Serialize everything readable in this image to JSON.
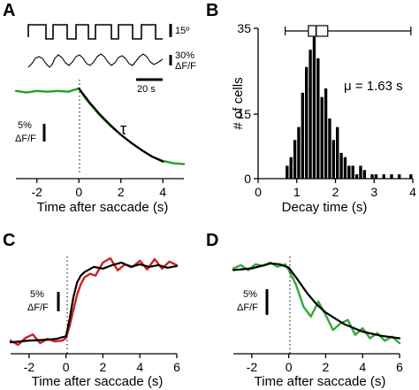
{
  "panel_labels": [
    "A",
    "B",
    "C",
    "D"
  ],
  "chart_data": [
    {
      "panel": "A",
      "type": "line",
      "xlabel": "Time after saccade (s)",
      "xticks": [
        -2,
        0,
        2,
        4
      ],
      "xlim": [
        -3,
        5
      ],
      "scalebars": {
        "eye": "15º",
        "dff_top_line1": "30%",
        "dff_top_line2": "ΔF/F",
        "time": "20 s",
        "dff_line1": "5%",
        "dff_line2": "ΔF/F"
      },
      "annotation": "τ",
      "series": [
        {
          "color": "#22a02a",
          "x": [
            -3,
            -2.5,
            -2,
            -1.5,
            -1,
            -0.5,
            0,
            0.25,
            0.5,
            1,
            1.5,
            2,
            2.5,
            3,
            3.5,
            4,
            4.5,
            5
          ],
          "values": [
            0.97,
            0.95,
            0.97,
            0.96,
            0.97,
            0.96,
            1.0,
            0.9,
            0.82,
            0.67,
            0.54,
            0.43,
            0.33,
            0.24,
            0.16,
            0.11,
            0.08,
            0.07
          ]
        },
        {
          "color": "#000000",
          "x": [
            0,
            0.5,
            1,
            1.5,
            2,
            2.5,
            3,
            3.5,
            4
          ],
          "values": [
            1.0,
            0.83,
            0.68,
            0.55,
            0.43,
            0.33,
            0.24,
            0.16,
            0.1
          ]
        }
      ]
    },
    {
      "panel": "B",
      "type": "bar",
      "xlabel": "Decay time (s)",
      "ylabel": "# of cells",
      "annotation": "μ = 1.63 s",
      "xlim": [
        0,
        4
      ],
      "ylim": [
        0,
        35
      ],
      "xticks": [
        0,
        1,
        2,
        3,
        4
      ],
      "yticks": [
        0,
        15,
        35
      ],
      "bin_width": 0.1,
      "bin_starts": [
        0.7,
        0.8,
        0.9,
        1.0,
        1.1,
        1.2,
        1.3,
        1.4,
        1.5,
        1.6,
        1.7,
        1.8,
        1.9,
        2.0,
        2.1,
        2.2,
        2.3,
        2.4,
        2.5,
        2.6,
        2.7,
        2.8,
        2.9,
        3.0,
        3.1,
        3.2,
        3.3,
        3.4,
        3.5,
        3.6,
        3.7,
        3.8,
        3.9
      ],
      "values": [
        3,
        5,
        9,
        12,
        20,
        26,
        30,
        33,
        28,
        19,
        21,
        14,
        9,
        12,
        6,
        5,
        3,
        3,
        1,
        3,
        2,
        0,
        1,
        1,
        0,
        1,
        0,
        1,
        0,
        1,
        0,
        0,
        1
      ],
      "boxplot": {
        "whisker_low": 0.7,
        "q1": 1.3,
        "median": 1.5,
        "q3": 1.8,
        "whisker_high": 3.95
      }
    },
    {
      "panel": "C",
      "type": "line",
      "xlabel": "Time after saccade (s)",
      "xticks": [
        -2,
        0,
        2,
        4,
        6
      ],
      "xlim": [
        -3,
        6
      ],
      "scalebars": {
        "dff_line1": "5%",
        "dff_line2": "ΔF/F"
      },
      "series": [
        {
          "color": "#d02020",
          "x": [
            -3,
            -2.6,
            -2.2,
            -1.8,
            -1.4,
            -1,
            -0.6,
            -0.2,
            0,
            0.2,
            0.4,
            0.6,
            0.8,
            1,
            1.3,
            1.6,
            2,
            2.4,
            2.8,
            3.2,
            3.6,
            4,
            4.4,
            4.8,
            5.2,
            5.6,
            6
          ],
          "values": [
            0.05,
            0.0,
            0.08,
            0.12,
            0.02,
            0.07,
            0.04,
            0.05,
            0.08,
            0.22,
            0.4,
            0.58,
            0.7,
            0.78,
            0.82,
            0.8,
            0.95,
            1.0,
            0.86,
            0.93,
            0.9,
            0.97,
            0.87,
            0.99,
            0.88,
            0.96,
            0.92
          ]
        },
        {
          "color": "#000000",
          "x": [
            -3,
            -2,
            -1,
            -0.5,
            0,
            0.2,
            0.4,
            0.6,
            0.8,
            1,
            1.5,
            2,
            2.5,
            3,
            3.5,
            4,
            4.5,
            5,
            5.5,
            6
          ],
          "values": [
            0.03,
            0.05,
            0.06,
            0.07,
            0.1,
            0.3,
            0.55,
            0.72,
            0.8,
            0.84,
            0.9,
            0.88,
            0.92,
            0.95,
            0.9,
            0.93,
            0.9,
            0.92,
            0.89,
            0.91
          ]
        }
      ]
    },
    {
      "panel": "D",
      "type": "line",
      "xlabel": "Time after saccade (s)",
      "xticks": [
        -2,
        0,
        2,
        4,
        6
      ],
      "xlim": [
        -3,
        6
      ],
      "scalebars": {
        "dff_line1": "5%",
        "dff_line2": "ΔF/F"
      },
      "series": [
        {
          "color": "#32a83c",
          "x": [
            -3,
            -2.6,
            -2.2,
            -1.8,
            -1.4,
            -1,
            -0.6,
            -0.2,
            0,
            0.4,
            0.8,
            1.2,
            1.6,
            2,
            2.4,
            2.8,
            3.2,
            3.6,
            4,
            4.4,
            4.8,
            5.2,
            5.6,
            6
          ],
          "values": [
            0.92,
            0.96,
            0.9,
            0.97,
            0.95,
            0.99,
            0.94,
            0.97,
            0.9,
            0.72,
            0.46,
            0.34,
            0.52,
            0.36,
            0.18,
            0.26,
            0.3,
            0.12,
            0.2,
            0.08,
            0.14,
            0.05,
            0.1,
            0.02
          ]
        },
        {
          "color": "#000000",
          "x": [
            -3,
            -2,
            -1,
            -0.5,
            0,
            0.5,
            1,
            1.5,
            2,
            3,
            4,
            5,
            6
          ],
          "values": [
            0.9,
            0.92,
            0.98,
            0.97,
            0.93,
            0.78,
            0.62,
            0.49,
            0.39,
            0.25,
            0.16,
            0.11,
            0.08
          ]
        }
      ]
    }
  ]
}
